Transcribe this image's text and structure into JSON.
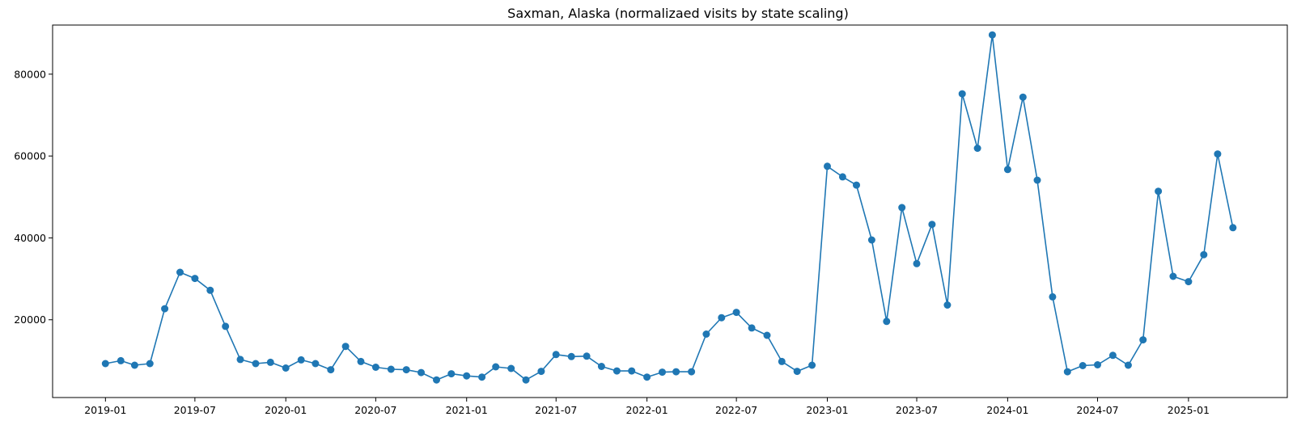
{
  "chart_data": {
    "type": "line",
    "title": "Saxman, Alaska (normalizaed visits by state scaling)",
    "xlabel": "",
    "ylabel": "",
    "x_tick_labels": [
      "2019-01",
      "2019-07",
      "2020-01",
      "2020-07",
      "2021-01",
      "2021-07",
      "2022-01",
      "2022-07",
      "2023-01",
      "2023-07",
      "2024-01",
      "2024-07",
      "2025-01"
    ],
    "y_ticks": [
      20000,
      40000,
      60000,
      80000
    ],
    "ylim": [
      1000,
      92000
    ],
    "xlim": [
      "2018-09-16",
      "2025-07-20"
    ],
    "grid": false,
    "legend": "none",
    "marker": "circle",
    "color": "#1f77b4",
    "series": [
      {
        "x": [
          "2019-01",
          "2019-02",
          "2019-03",
          "2019-04",
          "2019-05",
          "2019-06",
          "2019-07",
          "2019-08",
          "2019-09",
          "2019-10",
          "2019-11",
          "2019-12",
          "2020-01",
          "2020-02",
          "2020-03",
          "2020-04",
          "2020-05",
          "2020-06",
          "2020-07",
          "2020-08",
          "2020-09",
          "2020-10",
          "2020-11",
          "2020-12",
          "2021-01",
          "2021-02",
          "2021-03",
          "2021-04",
          "2021-05",
          "2021-06",
          "2021-07",
          "2021-08",
          "2021-09",
          "2021-10",
          "2021-11",
          "2021-12",
          "2022-01",
          "2022-02",
          "2022-03",
          "2022-04",
          "2022-05",
          "2022-06",
          "2022-07",
          "2022-08",
          "2022-09",
          "2022-10",
          "2022-11",
          "2022-12",
          "2023-01",
          "2023-02",
          "2023-03",
          "2023-04",
          "2023-05",
          "2023-06",
          "2023-07",
          "2023-08",
          "2023-09",
          "2023-10",
          "2023-11",
          "2023-12",
          "2024-01",
          "2024-02",
          "2024-03",
          "2024-04",
          "2024-05",
          "2024-06",
          "2024-07",
          "2024-08",
          "2024-09",
          "2024-10",
          "2024-11",
          "2024-12",
          "2025-01",
          "2025-02",
          "2025-03",
          "2025-04"
        ],
        "values": [
          9300,
          10000,
          8900,
          9300,
          22700,
          31600,
          30100,
          27200,
          18400,
          10300,
          9300,
          9600,
          8200,
          10200,
          9300,
          7800,
          13500,
          9800,
          8400,
          7900,
          7800,
          7100,
          5300,
          6800,
          6300,
          6000,
          8500,
          8100,
          5300,
          7400,
          11500,
          11000,
          11100,
          8600,
          7500,
          7500,
          6000,
          7200,
          7300,
          7300,
          16500,
          20500,
          21800,
          18000,
          16200,
          9800,
          7400,
          8900,
          57500,
          54900,
          52900,
          39500,
          19600,
          47400,
          33700,
          43300,
          23600,
          75200,
          61900,
          89600,
          56700,
          74400,
          54100,
          25600,
          7300,
          8800,
          9000,
          11300,
          8900,
          15100,
          51400,
          30600,
          29300,
          35900,
          60500,
          42500
        ]
      }
    ]
  }
}
